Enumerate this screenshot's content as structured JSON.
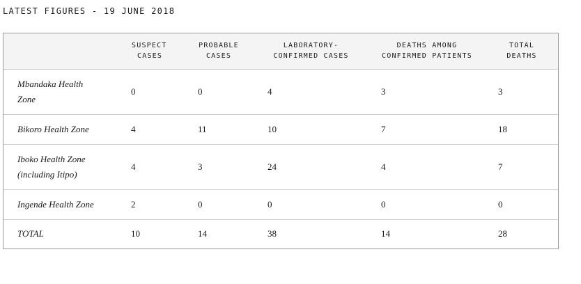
{
  "title": "LATEST FIGURES - 19 JUNE 2018",
  "table": {
    "headers": {
      "suspect": [
        "SUSPECT",
        "CASES"
      ],
      "probable": [
        "PROBABLE",
        "CASES"
      ],
      "lab": [
        "LABORATORY-",
        "CONFIRMED CASES"
      ],
      "deaths_confirmed": [
        "DEATHS AMONG",
        "CONFIRMED PATIENTS"
      ],
      "total_deaths": [
        "TOTAL",
        "DEATHS"
      ]
    },
    "rows": [
      {
        "zone": [
          "Mbandaka Health",
          "Zone"
        ],
        "suspect": "0",
        "probable": "0",
        "lab": "4",
        "deaths_confirmed": "3",
        "total_deaths": "3"
      },
      {
        "zone": [
          "Bikoro Health Zone"
        ],
        "suspect": "4",
        "probable": "11",
        "lab": "10",
        "deaths_confirmed": "7",
        "total_deaths": "18"
      },
      {
        "zone": [
          "Iboko Health Zone",
          "(including Itipo)"
        ],
        "suspect": "4",
        "probable": "3",
        "lab": "24",
        "deaths_confirmed": "4",
        "total_deaths": "7"
      },
      {
        "zone": [
          "Ingende Health Zone"
        ],
        "suspect": "2",
        "probable": "0",
        "lab": "0",
        "deaths_confirmed": "0",
        "total_deaths": "0"
      },
      {
        "zone": [
          "TOTAL"
        ],
        "suspect": "10",
        "probable": "14",
        "lab": "38",
        "deaths_confirmed": "14",
        "total_deaths": "28"
      }
    ]
  }
}
